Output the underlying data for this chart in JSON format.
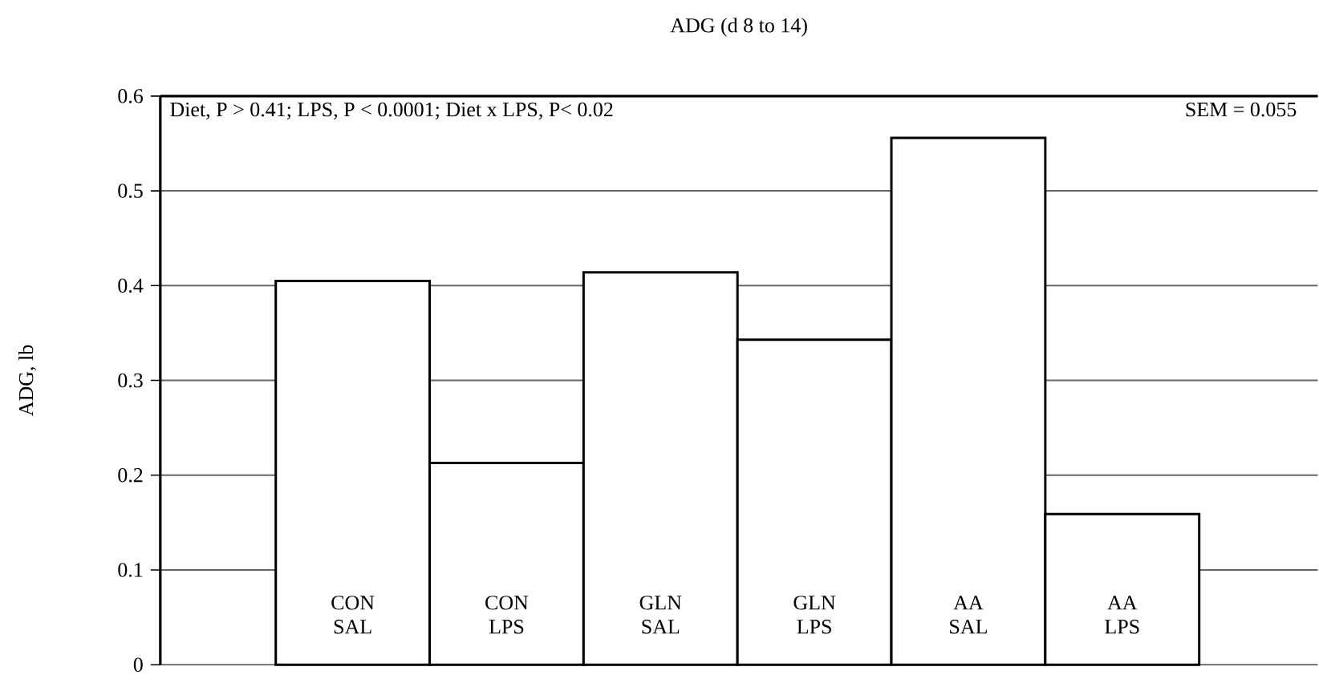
{
  "chart_data": {
    "type": "bar",
    "title": "ADG (d 8 to 14)",
    "ylabel": "ADG, lb",
    "categories": [
      "CON SAL",
      "CON LPS",
      "GLN SAL",
      "GLN LPS",
      "AA SAL",
      "AA LPS"
    ],
    "values": [
      0.405,
      0.213,
      0.414,
      0.343,
      0.556,
      0.159
    ],
    "color": "#ffffff",
    "ylim": [
      0,
      0.6
    ],
    "yticks": [
      0,
      0.1,
      0.2,
      0.3,
      0.4,
      0.5,
      0.6
    ],
    "grid": "y",
    "annotations": [
      "Diet, P > 0.41; LPS, P < 0.0001; Diet x LPS, P< 0.02",
      "SEM = 0.055"
    ]
  }
}
